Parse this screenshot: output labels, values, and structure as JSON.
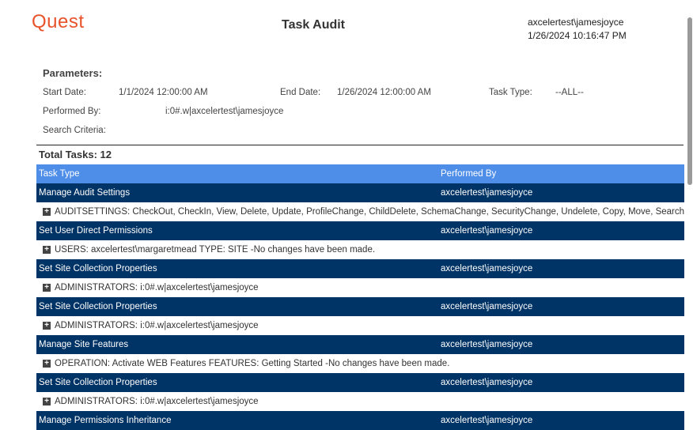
{
  "header": {
    "logo": "Quest",
    "title": "Task Audit",
    "user": "axcelertest\\jamesjoyce",
    "timestamp": "1/26/2024 10:16:47 PM"
  },
  "parameters": {
    "heading": "Parameters:",
    "start_label": "Start Date:",
    "start_value": "1/1/2024 12:00:00 AM",
    "end_label": "End Date:",
    "end_value": "1/26/2024 12:00:00 AM",
    "type_label": "Task Type:",
    "type_value": "--ALL--",
    "performed_label": "Performed By:",
    "performed_value": "i:0#.w|axcelertest\\jamesjoyce",
    "search_label": "Search Criteria:"
  },
  "total": "Total Tasks: 12",
  "columns": [
    "Task Type",
    "Performed By"
  ],
  "rows": [
    {
      "task": "Manage Audit Settings",
      "by": "axcelertest\\jamesjoyce",
      "detail": "AUDITSETTINGS: CheckOut, CheckIn, View, Delete, Update, ProfileChange, ChildDelete, SchemaChange, SecurityChange, Undelete, Copy, Move, Search"
    },
    {
      "task": "Set User Direct Permissions",
      "by": "axcelertest\\jamesjoyce",
      "detail": "USERS: axcelertest\\margaretmead  TYPE: SITE  -No changes have been made."
    },
    {
      "task": "Set Site Collection Properties",
      "by": "axcelertest\\jamesjoyce",
      "detail": "ADMINISTRATORS: i:0#.w|axcelertest\\jamesjoyce"
    },
    {
      "task": "Set Site Collection Properties",
      "by": "axcelertest\\jamesjoyce",
      "detail": "ADMINISTRATORS: i:0#.w|axcelertest\\jamesjoyce"
    },
    {
      "task": "Manage Site Features",
      "by": "axcelertest\\jamesjoyce",
      "detail": "OPERATION: Activate WEB Features  FEATURES: Getting Started  -No changes have been made."
    },
    {
      "task": "Set Site Collection Properties",
      "by": "axcelertest\\jamesjoyce",
      "detail": "ADMINISTRATORS: i:0#.w|axcelertest\\jamesjoyce"
    },
    {
      "task": "Manage Permissions Inheritance",
      "by": "axcelertest\\jamesjoyce"
    }
  ]
}
